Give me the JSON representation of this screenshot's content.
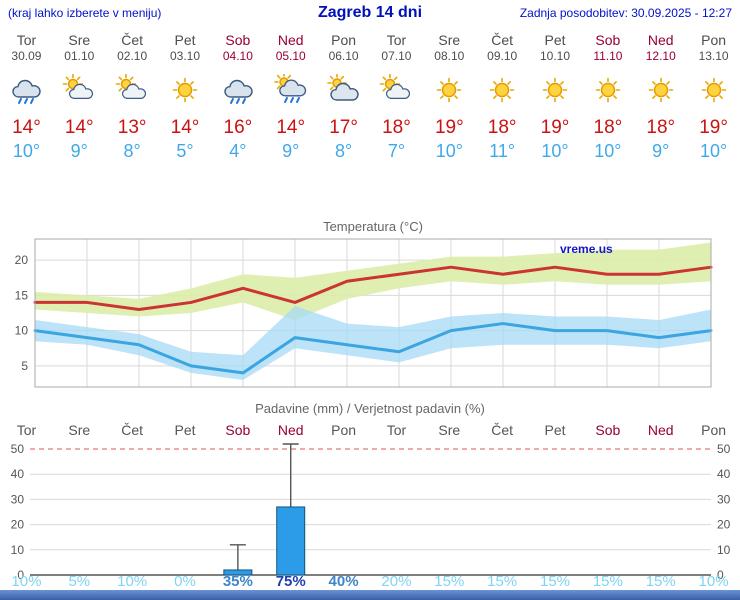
{
  "header": {
    "left_note": "(kraj lahko izberete v meniju)",
    "title": "Zagreb 14 dni",
    "updated": "Zadnja posodobitev: 30.09.2025 - 12:27"
  },
  "watermark": "vreme.us",
  "days": [
    {
      "name": "Tor",
      "date": "30.09",
      "weekend": false,
      "icon": "rain",
      "tmax": "14°",
      "tmin": "10°"
    },
    {
      "name": "Sre",
      "date": "01.10",
      "weekend": false,
      "icon": "partly-cloudy",
      "tmax": "14°",
      "tmin": "9°"
    },
    {
      "name": "Čet",
      "date": "02.10",
      "weekend": false,
      "icon": "partly-cloudy",
      "tmax": "13°",
      "tmin": "8°"
    },
    {
      "name": "Pet",
      "date": "03.10",
      "weekend": false,
      "icon": "sunny",
      "tmax": "14°",
      "tmin": "5°"
    },
    {
      "name": "Sob",
      "date": "04.10",
      "weekend": true,
      "icon": "rain",
      "tmax": "16°",
      "tmin": "4°"
    },
    {
      "name": "Ned",
      "date": "05.10",
      "weekend": true,
      "icon": "rain-sun",
      "tmax": "14°",
      "tmin": "9°"
    },
    {
      "name": "Pon",
      "date": "06.10",
      "weekend": false,
      "icon": "cloudy",
      "tmax": "17°",
      "tmin": "8°"
    },
    {
      "name": "Tor",
      "date": "07.10",
      "weekend": false,
      "icon": "partly-cloudy",
      "tmax": "18°",
      "tmin": "7°"
    },
    {
      "name": "Sre",
      "date": "08.10",
      "weekend": false,
      "icon": "sunny",
      "tmax": "19°",
      "tmin": "10°"
    },
    {
      "name": "Čet",
      "date": "09.10",
      "weekend": false,
      "icon": "sunny",
      "tmax": "18°",
      "tmin": "11°"
    },
    {
      "name": "Pet",
      "date": "10.10",
      "weekend": false,
      "icon": "sunny",
      "tmax": "19°",
      "tmin": "10°"
    },
    {
      "name": "Sob",
      "date": "11.10",
      "weekend": true,
      "icon": "sunny",
      "tmax": "18°",
      "tmin": "10°"
    },
    {
      "name": "Ned",
      "date": "12.10",
      "weekend": true,
      "icon": "sunny",
      "tmax": "18°",
      "tmin": "9°"
    },
    {
      "name": "Pon",
      "date": "13.10",
      "weekend": false,
      "icon": "sunny",
      "tmax": "19°",
      "tmin": "10°"
    }
  ],
  "colors": {
    "header_blue": "#0011cc",
    "weekend_red": "#990033",
    "tmax_red": "#cc1111",
    "tmin_blue": "#3fa9e8",
    "max_line": "#cc3333",
    "min_line": "#3aa5e0",
    "bar_blue": "#2d9ce8"
  },
  "chart_data": [
    {
      "type": "line",
      "title": "Temperatura (°C)",
      "xlabel": "",
      "ylabel": "",
      "categories": [
        "Tor",
        "Sre",
        "Čet",
        "Pet",
        "Sob",
        "Ned",
        "Pon",
        "Tor",
        "Sre",
        "Čet",
        "Pet",
        "Sob",
        "Ned",
        "Pon"
      ],
      "ylim": [
        2,
        23
      ],
      "yticks": [
        5,
        10,
        15,
        20
      ],
      "grid": true,
      "legend": "none",
      "series": [
        {
          "name": "max-temperature",
          "color": "#cc3333",
          "values": [
            14,
            14,
            13,
            14,
            16,
            14,
            17,
            18,
            19,
            18,
            19,
            18,
            18,
            19
          ]
        },
        {
          "name": "min-temperature",
          "color": "#3aa5e0",
          "values": [
            10,
            9,
            8,
            5,
            4,
            9,
            8,
            7,
            10,
            11,
            10,
            10,
            9,
            10
          ]
        }
      ],
      "bands": [
        {
          "name": "max-range",
          "color": "#dcedaa",
          "opacity": 0.9,
          "upper": [
            15.5,
            15,
            14.5,
            16,
            18,
            17.5,
            18.5,
            19.5,
            20.5,
            20.5,
            21,
            21.5,
            21.5,
            22.5
          ],
          "lower": [
            13,
            12.5,
            12,
            12.5,
            14,
            11.5,
            14.5,
            16,
            17,
            16.5,
            17,
            16.5,
            16.5,
            17
          ]
        },
        {
          "name": "min-range",
          "color": "#a6d9f4",
          "opacity": 0.75,
          "upper": [
            11.5,
            10.5,
            9.5,
            7,
            6.5,
            13.5,
            11,
            10.5,
            12,
            12.5,
            12,
            12,
            11.5,
            13
          ],
          "lower": [
            8.5,
            8,
            6.5,
            4,
            3,
            7.5,
            6.5,
            5.5,
            7.5,
            8,
            8,
            8,
            7.5,
            8.5
          ]
        }
      ]
    },
    {
      "type": "bar",
      "title": "Padavine (mm) / Verjetnost padavin (%)",
      "xlabel": "",
      "ylabel": "",
      "categories": [
        "Tor",
        "Sre",
        "Čet",
        "Pet",
        "Sob",
        "Ned",
        "Pon",
        "Tor",
        "Sre",
        "Čet",
        "Pet",
        "Sob",
        "Ned",
        "Pon"
      ],
      "ylim": [
        0,
        52
      ],
      "yticks": [
        0,
        10,
        20,
        30,
        40,
        50
      ],
      "grid": true,
      "legend": "none",
      "values": [
        0,
        0,
        0,
        0,
        2,
        27,
        0,
        0,
        0,
        0,
        0,
        0,
        0,
        0
      ],
      "whisker_high": [
        0,
        0,
        0,
        0,
        12,
        52,
        0,
        0,
        0,
        0,
        0,
        0,
        0,
        0
      ],
      "probabilities": [
        {
          "label": "10%",
          "level": "low"
        },
        {
          "label": "5%",
          "level": "low"
        },
        {
          "label": "10%",
          "level": "low"
        },
        {
          "label": "0%",
          "level": "low"
        },
        {
          "label": "35%",
          "level": "mid"
        },
        {
          "label": "75%",
          "level": "high"
        },
        {
          "label": "40%",
          "level": "mid"
        },
        {
          "label": "20%",
          "level": "low"
        },
        {
          "label": "15%",
          "level": "low"
        },
        {
          "label": "15%",
          "level": "low"
        },
        {
          "label": "15%",
          "level": "low"
        },
        {
          "label": "15%",
          "level": "low"
        },
        {
          "label": "15%",
          "level": "low"
        },
        {
          "label": "10%",
          "level": "low"
        }
      ]
    }
  ]
}
